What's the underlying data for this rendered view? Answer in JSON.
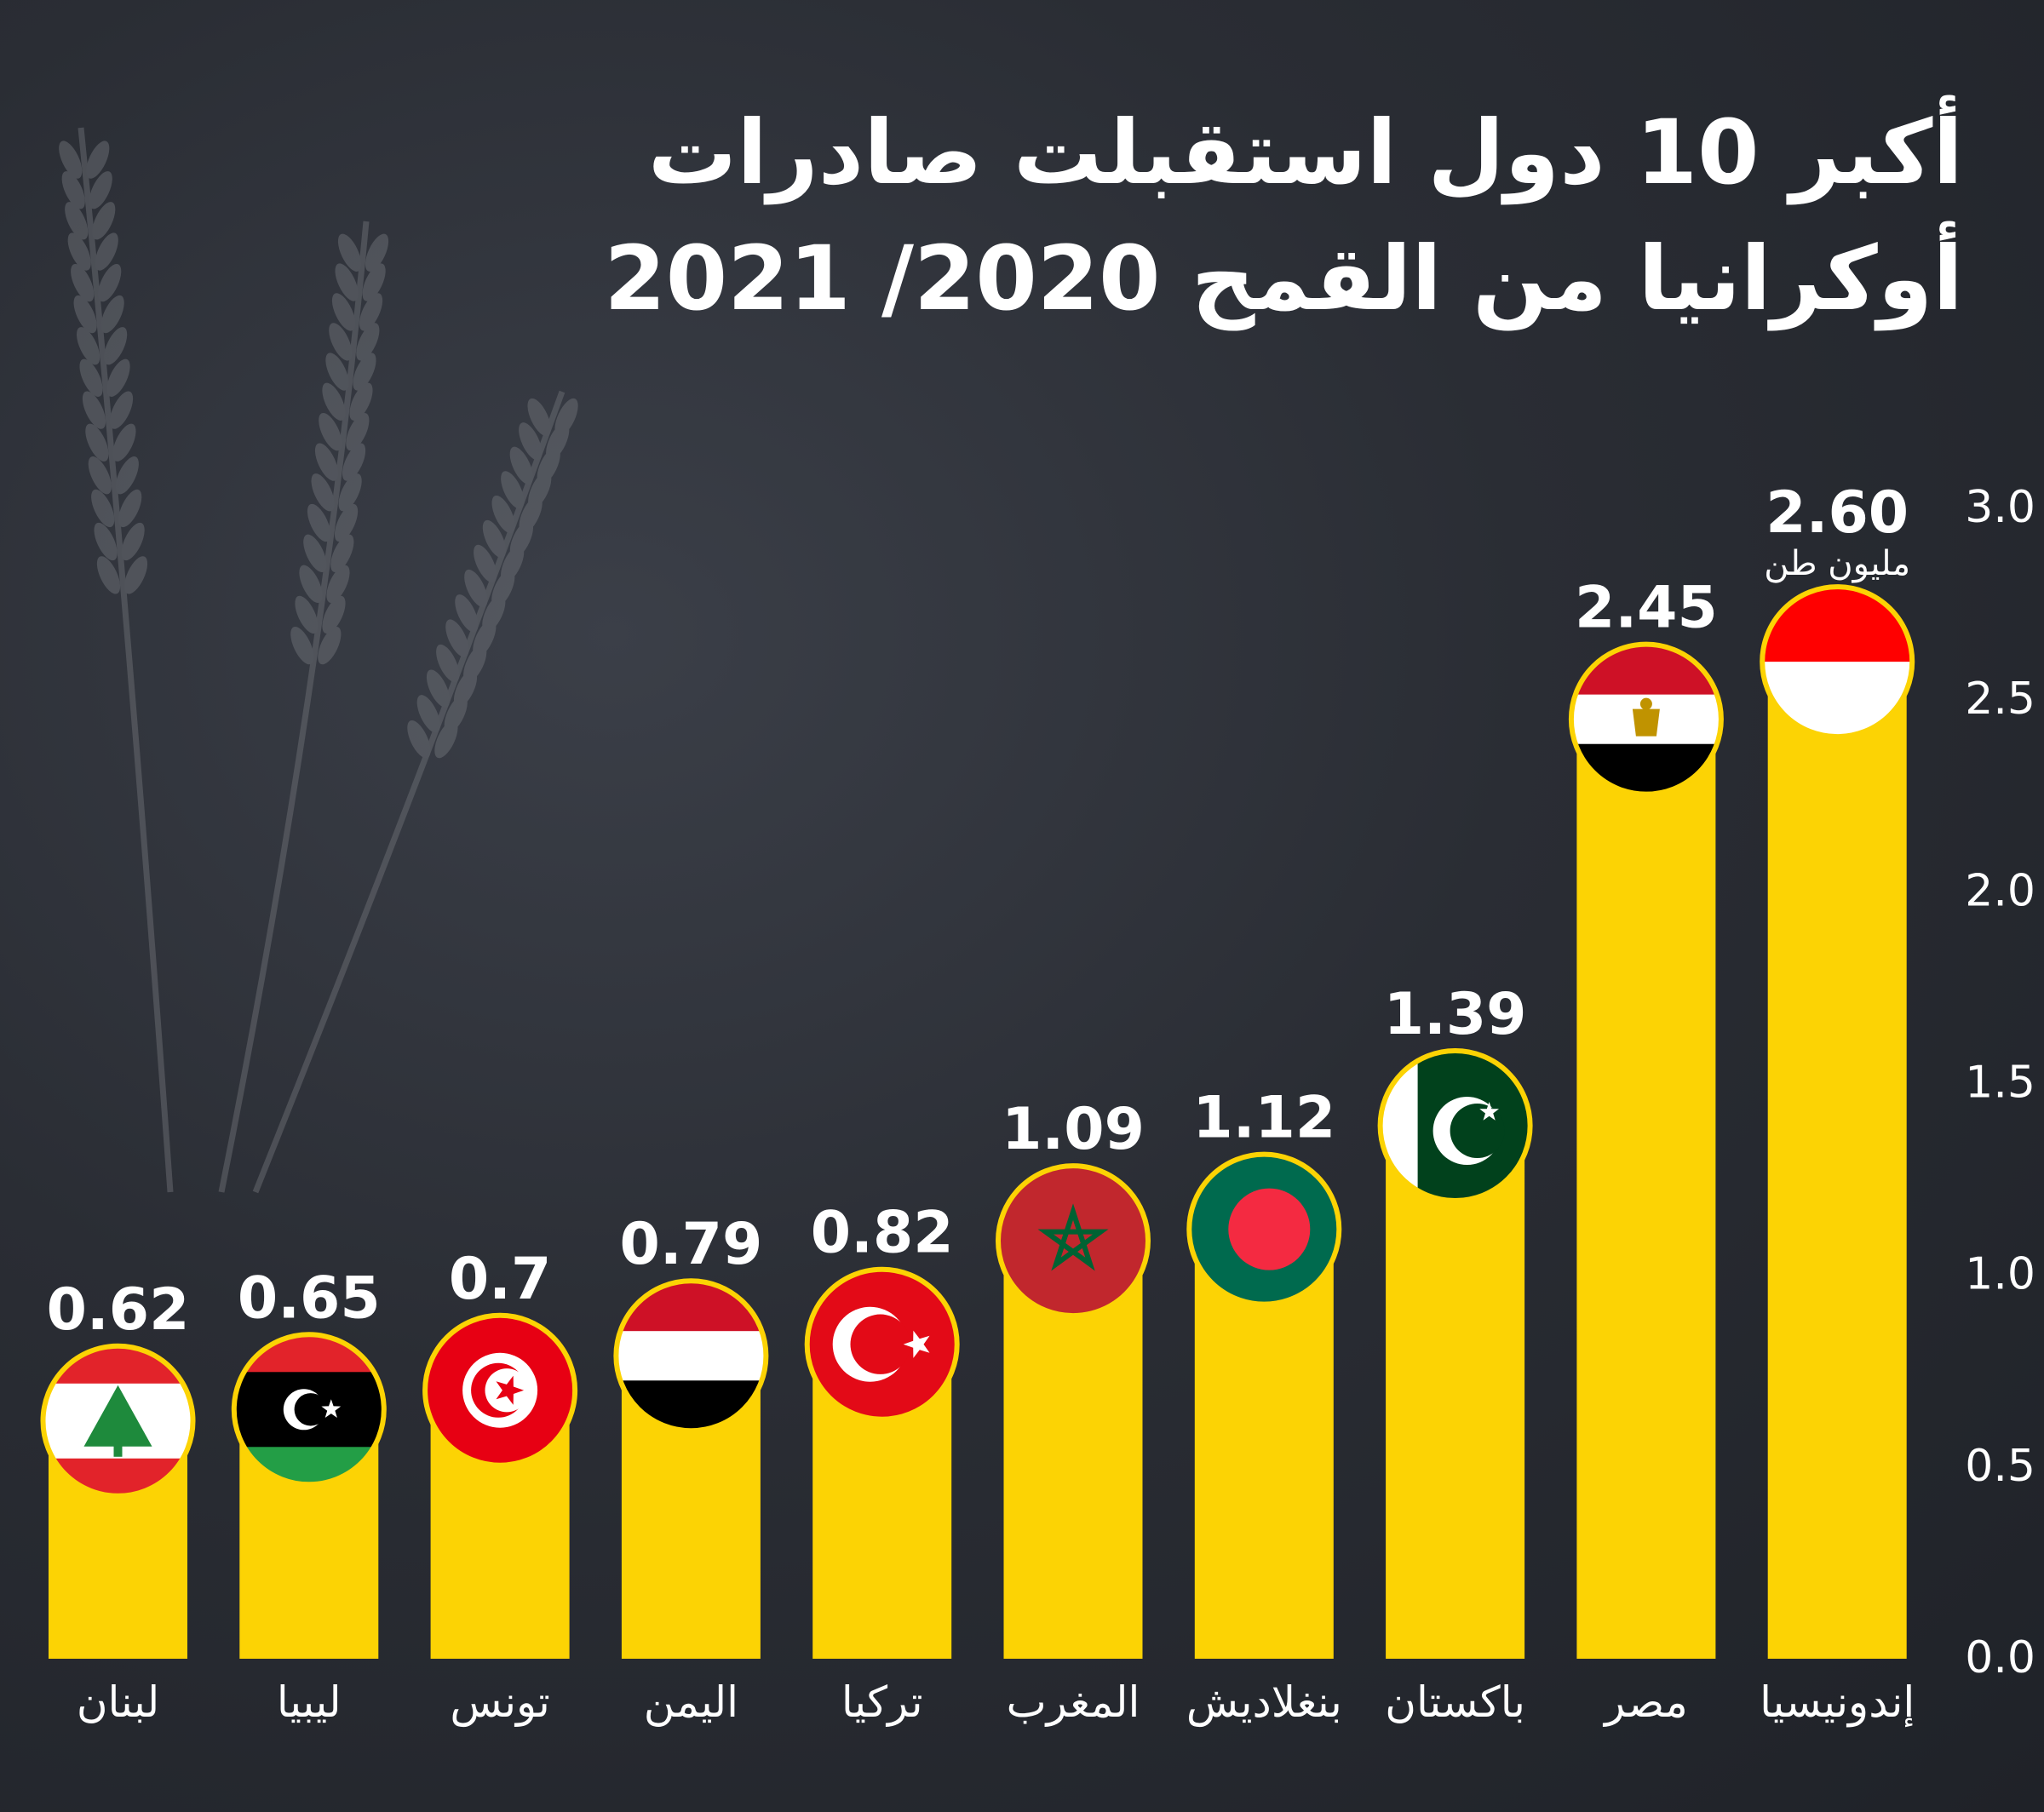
{
  "title": {
    "line1": "أكبر 10 دول استقبلت صادرات",
    "line2": "أوكرانيا من القمح 2020/ 2021"
  },
  "colors": {
    "background": "#2a2d34",
    "bar": "#fcd304",
    "text": "#ffffff",
    "axis": "#ffffff"
  },
  "chart_data": {
    "type": "bar",
    "unit_label": "مليون طن",
    "categories": [
      "لبنان",
      "ليبيا",
      "تونس",
      "اليمن",
      "تركيا",
      "المغرب",
      "بنغلاديش",
      "باكستان",
      "مصر",
      "إندونيسيا"
    ],
    "value_labels": [
      "0.62",
      "0.65",
      "0.7",
      "0.79",
      "0.82",
      "1.09",
      "1.12",
      "1.39",
      "2.45",
      "2.60"
    ],
    "values": [
      0.62,
      0.65,
      0.7,
      0.79,
      0.82,
      1.09,
      1.12,
      1.39,
      2.45,
      2.6
    ],
    "flags": [
      "lebanon-flag-icon",
      "libya-flag-icon",
      "tunisia-flag-icon",
      "yemen-flag-icon",
      "turkey-flag-icon",
      "morocco-flag-icon",
      "bangladesh-flag-icon",
      "pakistan-flag-icon",
      "egypt-flag-icon",
      "indonesia-flag-icon"
    ],
    "y_ticks": [
      "0.0",
      "0.5",
      "1.0",
      "1.5",
      "2.0",
      "2.5",
      "3.0"
    ],
    "y_tick_values": [
      0,
      0.5,
      1,
      1.5,
      2,
      2.5,
      3
    ],
    "ylim": [
      0,
      3.0
    ],
    "y_axis_position": "right",
    "grid": false
  }
}
